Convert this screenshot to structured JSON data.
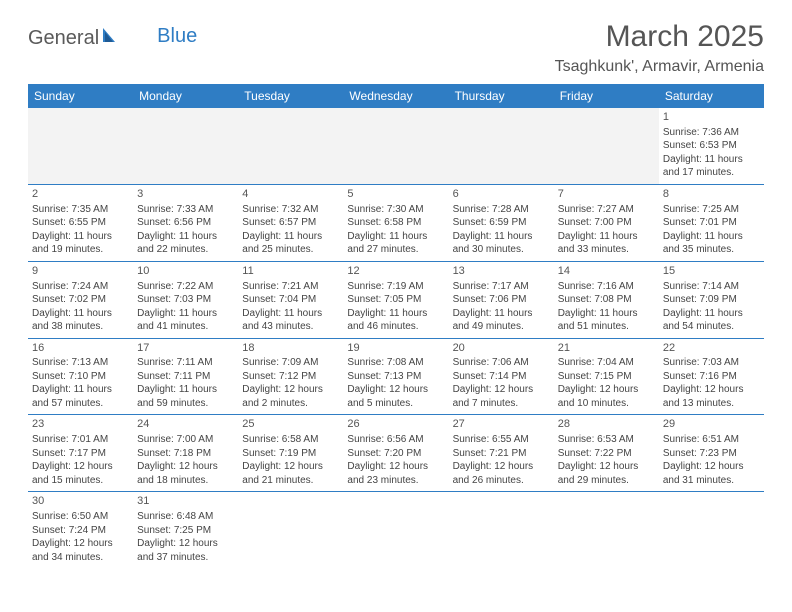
{
  "logo": {
    "part1": "General",
    "part2": "Blue"
  },
  "title": "March 2025",
  "location": "Tsaghkunk', Armavir, Armenia",
  "colors": {
    "header_bg": "#2f7dc4",
    "header_text": "#ffffff",
    "border": "#2f7dc4",
    "body_text": "#444444",
    "title_text": "#555555",
    "logo_gray": "#5a5a5a",
    "logo_blue": "#2f7dc4"
  },
  "dayHeaders": [
    "Sunday",
    "Monday",
    "Tuesday",
    "Wednesday",
    "Thursday",
    "Friday",
    "Saturday"
  ],
  "weeks": [
    [
      null,
      null,
      null,
      null,
      null,
      null,
      {
        "n": "1",
        "sunrise": "7:36 AM",
        "sunset": "6:53 PM",
        "daylight": "11 hours and 17 minutes."
      }
    ],
    [
      {
        "n": "2",
        "sunrise": "7:35 AM",
        "sunset": "6:55 PM",
        "daylight": "11 hours and 19 minutes."
      },
      {
        "n": "3",
        "sunrise": "7:33 AM",
        "sunset": "6:56 PM",
        "daylight": "11 hours and 22 minutes."
      },
      {
        "n": "4",
        "sunrise": "7:32 AM",
        "sunset": "6:57 PM",
        "daylight": "11 hours and 25 minutes."
      },
      {
        "n": "5",
        "sunrise": "7:30 AM",
        "sunset": "6:58 PM",
        "daylight": "11 hours and 27 minutes."
      },
      {
        "n": "6",
        "sunrise": "7:28 AM",
        "sunset": "6:59 PM",
        "daylight": "11 hours and 30 minutes."
      },
      {
        "n": "7",
        "sunrise": "7:27 AM",
        "sunset": "7:00 PM",
        "daylight": "11 hours and 33 minutes."
      },
      {
        "n": "8",
        "sunrise": "7:25 AM",
        "sunset": "7:01 PM",
        "daylight": "11 hours and 35 minutes."
      }
    ],
    [
      {
        "n": "9",
        "sunrise": "7:24 AM",
        "sunset": "7:02 PM",
        "daylight": "11 hours and 38 minutes."
      },
      {
        "n": "10",
        "sunrise": "7:22 AM",
        "sunset": "7:03 PM",
        "daylight": "11 hours and 41 minutes."
      },
      {
        "n": "11",
        "sunrise": "7:21 AM",
        "sunset": "7:04 PM",
        "daylight": "11 hours and 43 minutes."
      },
      {
        "n": "12",
        "sunrise": "7:19 AM",
        "sunset": "7:05 PM",
        "daylight": "11 hours and 46 minutes."
      },
      {
        "n": "13",
        "sunrise": "7:17 AM",
        "sunset": "7:06 PM",
        "daylight": "11 hours and 49 minutes."
      },
      {
        "n": "14",
        "sunrise": "7:16 AM",
        "sunset": "7:08 PM",
        "daylight": "11 hours and 51 minutes."
      },
      {
        "n": "15",
        "sunrise": "7:14 AM",
        "sunset": "7:09 PM",
        "daylight": "11 hours and 54 minutes."
      }
    ],
    [
      {
        "n": "16",
        "sunrise": "7:13 AM",
        "sunset": "7:10 PM",
        "daylight": "11 hours and 57 minutes."
      },
      {
        "n": "17",
        "sunrise": "7:11 AM",
        "sunset": "7:11 PM",
        "daylight": "11 hours and 59 minutes."
      },
      {
        "n": "18",
        "sunrise": "7:09 AM",
        "sunset": "7:12 PM",
        "daylight": "12 hours and 2 minutes."
      },
      {
        "n": "19",
        "sunrise": "7:08 AM",
        "sunset": "7:13 PM",
        "daylight": "12 hours and 5 minutes."
      },
      {
        "n": "20",
        "sunrise": "7:06 AM",
        "sunset": "7:14 PM",
        "daylight": "12 hours and 7 minutes."
      },
      {
        "n": "21",
        "sunrise": "7:04 AM",
        "sunset": "7:15 PM",
        "daylight": "12 hours and 10 minutes."
      },
      {
        "n": "22",
        "sunrise": "7:03 AM",
        "sunset": "7:16 PM",
        "daylight": "12 hours and 13 minutes."
      }
    ],
    [
      {
        "n": "23",
        "sunrise": "7:01 AM",
        "sunset": "7:17 PM",
        "daylight": "12 hours and 15 minutes."
      },
      {
        "n": "24",
        "sunrise": "7:00 AM",
        "sunset": "7:18 PM",
        "daylight": "12 hours and 18 minutes."
      },
      {
        "n": "25",
        "sunrise": "6:58 AM",
        "sunset": "7:19 PM",
        "daylight": "12 hours and 21 minutes."
      },
      {
        "n": "26",
        "sunrise": "6:56 AM",
        "sunset": "7:20 PM",
        "daylight": "12 hours and 23 minutes."
      },
      {
        "n": "27",
        "sunrise": "6:55 AM",
        "sunset": "7:21 PM",
        "daylight": "12 hours and 26 minutes."
      },
      {
        "n": "28",
        "sunrise": "6:53 AM",
        "sunset": "7:22 PM",
        "daylight": "12 hours and 29 minutes."
      },
      {
        "n": "29",
        "sunrise": "6:51 AM",
        "sunset": "7:23 PM",
        "daylight": "12 hours and 31 minutes."
      }
    ],
    [
      {
        "n": "30",
        "sunrise": "6:50 AM",
        "sunset": "7:24 PM",
        "daylight": "12 hours and 34 minutes."
      },
      {
        "n": "31",
        "sunrise": "6:48 AM",
        "sunset": "7:25 PM",
        "daylight": "12 hours and 37 minutes."
      },
      null,
      null,
      null,
      null,
      null
    ]
  ],
  "labels": {
    "sunrise": "Sunrise: ",
    "sunset": "Sunset: ",
    "daylight": "Daylight: "
  }
}
